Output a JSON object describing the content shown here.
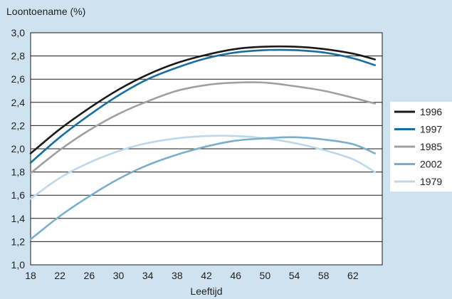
{
  "chart_data": {
    "type": "line",
    "ylabel": "Loontoename (%)",
    "xlabel": "Leeftijd",
    "xlim": [
      18,
      66
    ],
    "ylim": [
      1.0,
      3.0
    ],
    "x_ticks": [
      "18",
      "22",
      "26",
      "30",
      "34",
      "38",
      "42",
      "46",
      "50",
      "54",
      "58",
      "62"
    ],
    "y_ticks": [
      "1,0",
      "1,2",
      "1,4",
      "1,6",
      "1,8",
      "2,0",
      "2,2",
      "2,4",
      "2,6",
      "2,8",
      "3,0"
    ],
    "grid": "horizontal",
    "legend_position": "right",
    "x": [
      18,
      22,
      26,
      30,
      34,
      38,
      42,
      46,
      50,
      54,
      58,
      62,
      65
    ],
    "series": [
      {
        "name": "1996",
        "color": "#1a1a1a",
        "values": [
          1.96,
          2.17,
          2.35,
          2.51,
          2.64,
          2.74,
          2.81,
          2.86,
          2.88,
          2.88,
          2.86,
          2.82,
          2.77
        ]
      },
      {
        "name": "1997",
        "color": "#1a6e9e",
        "values": [
          1.88,
          2.1,
          2.29,
          2.46,
          2.6,
          2.7,
          2.78,
          2.83,
          2.85,
          2.85,
          2.83,
          2.78,
          2.72
        ]
      },
      {
        "name": "1985",
        "color": "#a0a0a0",
        "values": [
          1.79,
          1.99,
          2.16,
          2.3,
          2.41,
          2.5,
          2.55,
          2.57,
          2.57,
          2.54,
          2.5,
          2.44,
          2.39
        ]
      },
      {
        "name": "2002",
        "color": "#7aaecb",
        "values": [
          1.22,
          1.42,
          1.59,
          1.74,
          1.86,
          1.95,
          2.02,
          2.07,
          2.09,
          2.1,
          2.08,
          2.04,
          1.96
        ]
      },
      {
        "name": "1979",
        "color": "#bcd8ea",
        "values": [
          1.57,
          1.75,
          1.88,
          1.98,
          2.05,
          2.09,
          2.11,
          2.11,
          2.09,
          2.05,
          1.99,
          1.91,
          1.8
        ]
      }
    ]
  }
}
